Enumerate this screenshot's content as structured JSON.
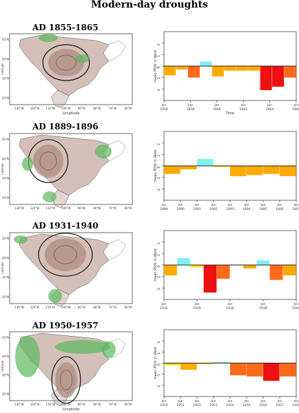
{
  "title": "Modern-day droughts",
  "colors": {
    "drought_strong": "#ee1111",
    "drought_mid": "#ff6a1a",
    "drought_mild": "#ffaa00",
    "drought_slight": "#ffdd00",
    "wet_slight": "#80f0f0",
    "map_dry": "#b08c80",
    "map_wet": "#5cb85c"
  },
  "chart_data": [
    {
      "type": "map",
      "title": "AD 1855-1865",
      "map_ticks": {
        "lon": [
          "130°W",
          "120°W",
          "110°W",
          "100°W",
          "90°W",
          "80°W",
          "70°W",
          "60°W"
        ],
        "lat": [
          "50°N",
          "40°N",
          "30°N",
          "20°N"
        ]
      },
      "xlabel": "Longitude",
      "ylabel": "Latitude"
    },
    {
      "type": "bar",
      "title": "AD 1855-1865",
      "xlabel": "Time",
      "ylabel": "mean PDSI in West",
      "ylim": [
        -3,
        3
      ],
      "yticks": [
        "2",
        "1",
        "0",
        "-1",
        "-2"
      ],
      "xticks": [
        "Jan\n1856",
        "Jan\n1858",
        "Jan\n1860",
        "Jan\n1862",
        "Jan\n1864",
        "Jan\n1866"
      ],
      "categories": [
        "1855",
        "1856",
        "1857",
        "1858",
        "1859",
        "1860",
        "1861",
        "1862",
        "1863",
        "1864",
        "1865"
      ],
      "values": [
        -0.8,
        -0.3,
        -1.0,
        0.4,
        -0.9,
        -0.4,
        -0.4,
        -0.4,
        -2.1,
        -1.8,
        -1.0
      ]
    },
    {
      "type": "map",
      "title": "AD 1889-1896",
      "map_ticks": {
        "lon": [
          "130°W",
          "120°W",
          "110°W",
          "100°W",
          "90°W",
          "80°W",
          "70°W",
          "60°W"
        ],
        "lat": [
          "50°N",
          "40°N",
          "30°N",
          "20°N"
        ]
      },
      "xlabel": "",
      "ylabel": "Latitude"
    },
    {
      "type": "bar",
      "title": "AD 1889-1896",
      "xlabel": "",
      "ylabel": "mean PDSI in West",
      "ylim": [
        -3,
        3
      ],
      "yticks": [
        "2",
        "1",
        "0",
        "-1",
        "-2"
      ],
      "xticks": [
        "Jan\n1889",
        "Jan\n1890",
        "Jan\n1891",
        "Jan\n1892",
        "Jan\n1893",
        "Jan\n1894",
        "Jan\n1895",
        "Jan\n1896",
        "Jan\n1897"
      ],
      "categories": [
        "1889",
        "1890",
        "1891",
        "1892",
        "1893",
        "1894",
        "1895",
        "1896"
      ],
      "values": [
        -0.7,
        -0.3,
        0.6,
        -0.1,
        -0.9,
        -0.8,
        -0.7,
        -0.9
      ]
    },
    {
      "type": "map",
      "title": "AD 1931-1940",
      "map_ticks": {
        "lon": [
          "130°W",
          "120°W",
          "110°W",
          "100°W",
          "90°W",
          "80°W",
          "70°W",
          "60°W"
        ],
        "lat": [
          "50°N",
          "40°N",
          "30°N",
          "20°N"
        ]
      },
      "xlabel": "",
      "ylabel": "Latitude"
    },
    {
      "type": "bar",
      "title": "AD 1931-1940",
      "xlabel": "",
      "ylabel": "mean PDSI in West",
      "ylim": [
        -3,
        3
      ],
      "yticks": [
        "2",
        "1",
        "0",
        "-1",
        "-2"
      ],
      "xticks": [
        "Jan\n1932",
        "Jan\n1934",
        "Jan\n1936",
        "Jan\n1938",
        "Jan\n1940"
      ],
      "categories": [
        "1931",
        "1932",
        "1933",
        "1934",
        "1935",
        "1936",
        "1937",
        "1938",
        "1939",
        "1940"
      ],
      "values": [
        -0.9,
        0.6,
        -0.2,
        -2.4,
        -1.2,
        0.05,
        -0.3,
        0.4,
        -1.3,
        -0.9
      ]
    },
    {
      "type": "map",
      "title": "AD 1950-1957",
      "map_ticks": {
        "lon": [
          "130°W",
          "120°W",
          "110°W",
          "100°W",
          "90°W",
          "80°W",
          "70°W",
          "60°W"
        ],
        "lat": [
          "50°N",
          "40°N",
          "30°N",
          "20°N"
        ]
      },
      "xlabel": "Longitude",
      "ylabel": "Latitude"
    },
    {
      "type": "bar",
      "title": "AD 1950-1957",
      "xlabel": "",
      "ylabel": "mean PDSI in West",
      "ylim": [
        -3,
        3
      ],
      "yticks": [
        "2",
        "1",
        "0",
        "-1",
        "-2"
      ],
      "xticks": [
        "Jan\n1950",
        "Jan\n1951",
        "Jan\n1952",
        "Jan\n1953",
        "Jan\n1954",
        "Jan\n1955",
        "Jan\n1956",
        "Jan\n1957",
        "Jan\n1958"
      ],
      "categories": [
        "1950",
        "1951",
        "1952",
        "1953",
        "1954",
        "1955",
        "1956",
        "1957"
      ],
      "values": [
        -0.2,
        -0.6,
        -0.1,
        0.1,
        -1.1,
        -1.2,
        -1.6,
        -1.2
      ]
    }
  ]
}
